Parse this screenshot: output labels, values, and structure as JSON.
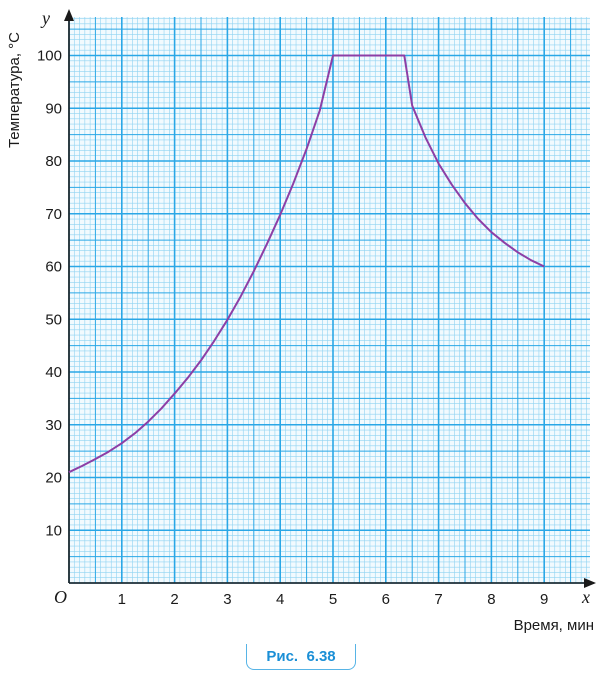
{
  "chart_data": {
    "type": "line",
    "xlabel": "Время, мин",
    "ylabel": "Температура, °C",
    "x_axis_var": "x",
    "y_axis_var": "y",
    "origin_label": "O",
    "xlim": [
      0,
      9.8
    ],
    "ylim": [
      0,
      108
    ],
    "x_ticks": [
      "1",
      "2",
      "3",
      "4",
      "5",
      "6",
      "7",
      "8",
      "9"
    ],
    "y_ticks": [
      "10",
      "20",
      "30",
      "40",
      "50",
      "60",
      "70",
      "80",
      "90",
      "100"
    ],
    "grid": true,
    "series": [
      {
        "x": [
          0,
          0.25,
          0.5,
          0.75,
          1,
          1.25,
          1.5,
          1.75,
          2,
          2.25,
          2.5,
          2.75,
          3,
          3.25,
          3.5,
          3.75,
          4,
          4.25,
          4.5,
          4.75,
          5,
          5.2,
          5.4,
          5.6,
          5.8,
          6,
          6.2,
          6.35,
          6.5,
          6.75,
          7,
          7.25,
          7.5,
          7.75,
          8,
          8.25,
          8.5,
          8.75,
          9
        ],
        "y": [
          21,
          22.2,
          23.5,
          24.9,
          26.5,
          28.4,
          30.6,
          33.1,
          35.9,
          38.9,
          42.2,
          45.9,
          49.9,
          54.3,
          59.1,
          64.3,
          69.8,
          75.8,
          82.3,
          89.6,
          100,
          100,
          100,
          100,
          100,
          100,
          100,
          100,
          90.5,
          84.5,
          79.5,
          75.5,
          72,
          69,
          66.5,
          64.5,
          62.7,
          61.2,
          60
        ]
      }
    ],
    "colors": {
      "grid_minor": "#8fd3f2",
      "grid_major": "#2aa7e6",
      "background": "#f2fafe",
      "line": "#8d3fa6"
    }
  },
  "caption": {
    "label": "Рис.",
    "number": "6.38"
  }
}
